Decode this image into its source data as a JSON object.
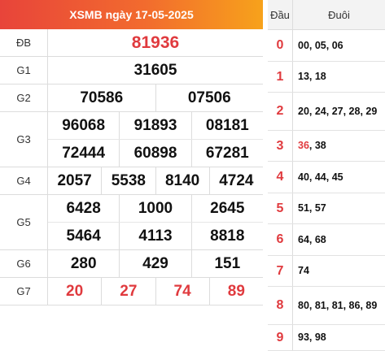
{
  "title": "XSMB ngày 17-05-2025",
  "prizes": [
    {
      "label": "ĐB",
      "lines": [
        [
          "81936"
        ]
      ]
    },
    {
      "label": "G1",
      "lines": [
        [
          "31605"
        ]
      ]
    },
    {
      "label": "G2",
      "lines": [
        [
          "70586",
          "07506"
        ]
      ]
    },
    {
      "label": "G3",
      "lines": [
        [
          "96068",
          "91893",
          "08181"
        ],
        [
          "72444",
          "60898",
          "67281"
        ]
      ]
    },
    {
      "label": "G4",
      "lines": [
        [
          "2057",
          "5538",
          "8140",
          "4724"
        ]
      ]
    },
    {
      "label": "G5",
      "lines": [
        [
          "6428",
          "1000",
          "2645"
        ],
        [
          "5464",
          "4113",
          "8818"
        ]
      ]
    },
    {
      "label": "G6",
      "lines": [
        [
          "280",
          "429",
          "151"
        ]
      ]
    },
    {
      "label": "G7",
      "lines": [
        [
          "20",
          "27",
          "74",
          "89"
        ]
      ]
    }
  ],
  "loto": {
    "header_dau": "Đầu",
    "header_duoi": "Đuôi",
    "rows": [
      {
        "dau": "0",
        "parts": [
          {
            "t": "00, 05, 06",
            "hl": false
          }
        ]
      },
      {
        "dau": "1",
        "parts": [
          {
            "t": "13, 18",
            "hl": false
          }
        ]
      },
      {
        "dau": "2",
        "parts": [
          {
            "t": "20, 24, 27, 28, 29",
            "hl": false
          }
        ]
      },
      {
        "dau": "3",
        "parts": [
          {
            "t": "36",
            "hl": true
          },
          {
            "t": ", 38",
            "hl": false
          }
        ]
      },
      {
        "dau": "4",
        "parts": [
          {
            "t": "40, 44, 45",
            "hl": false
          }
        ]
      },
      {
        "dau": "5",
        "parts": [
          {
            "t": "51, 57",
            "hl": false
          }
        ]
      },
      {
        "dau": "6",
        "parts": [
          {
            "t": "64, 68",
            "hl": false
          }
        ]
      },
      {
        "dau": "7",
        "parts": [
          {
            "t": "74",
            "hl": false
          }
        ]
      },
      {
        "dau": "8",
        "parts": [
          {
            "t": "80, 81, 81, 86, 89",
            "hl": false
          }
        ]
      },
      {
        "dau": "9",
        "parts": [
          {
            "t": "93, 98",
            "hl": false
          }
        ]
      }
    ]
  },
  "colors": {
    "accent": "#e03a3e",
    "header_start": "#e8443a",
    "header_end": "#f7a21b"
  }
}
